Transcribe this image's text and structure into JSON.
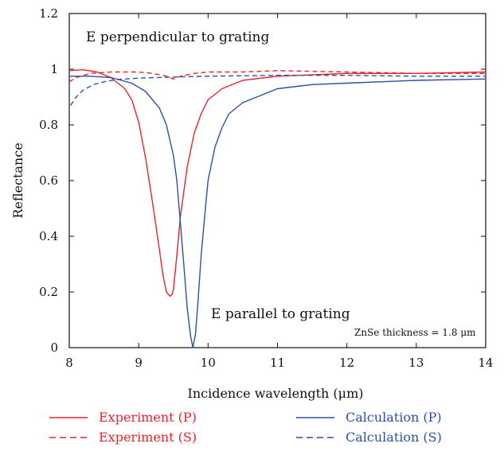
{
  "chart_data": {
    "type": "line",
    "xlabel": "Incidence wavelength (μm)",
    "ylabel": "Reflectance",
    "xlim": [
      8,
      14
    ],
    "ylim": [
      0,
      1.2
    ],
    "xticks": [
      "8",
      "9",
      "10",
      "11",
      "12",
      "13",
      "14"
    ],
    "yticks": [
      "0",
      "0.2",
      "0.4",
      "0.6",
      "0.8",
      "1",
      "1.2"
    ],
    "grid": false,
    "legend_position": "bottom",
    "annotations": {
      "top": "E perpendicular to grating",
      "bottom": "E parallel to grating",
      "thickness": "ZnSe thickness = 1.8 μm"
    },
    "series": [
      {
        "name": "Experiment (P)",
        "color": "#e8232a",
        "dash": "solid",
        "x": [
          8.0,
          8.2,
          8.4,
          8.6,
          8.8,
          8.9,
          9.0,
          9.1,
          9.2,
          9.3,
          9.35,
          9.4,
          9.45,
          9.48,
          9.5,
          9.55,
          9.6,
          9.7,
          9.8,
          9.9,
          10.0,
          10.2,
          10.5,
          11.0,
          12.0,
          13.0,
          14.0
        ],
        "y": [
          0.995,
          0.998,
          0.99,
          0.97,
          0.93,
          0.89,
          0.81,
          0.68,
          0.52,
          0.35,
          0.26,
          0.2,
          0.185,
          0.19,
          0.21,
          0.33,
          0.47,
          0.65,
          0.77,
          0.84,
          0.89,
          0.93,
          0.96,
          0.975,
          0.985,
          0.985,
          0.99
        ]
      },
      {
        "name": "Experiment (S)",
        "color": "#e8232a",
        "dash": "dashed",
        "x": [
          8.0,
          8.1,
          8.3,
          8.6,
          9.0,
          9.2,
          9.4,
          9.5,
          9.6,
          9.8,
          10.0,
          10.5,
          11.0,
          12.0,
          13.0,
          14.0
        ],
        "y": [
          0.955,
          0.97,
          0.985,
          0.99,
          0.99,
          0.985,
          0.975,
          0.965,
          0.975,
          0.985,
          0.99,
          0.99,
          0.995,
          0.99,
          0.985,
          0.985
        ]
      },
      {
        "name": "Calculation (P)",
        "color": "#2d4fa8",
        "dash": "solid",
        "x": [
          8.0,
          8.3,
          8.6,
          8.9,
          9.1,
          9.3,
          9.4,
          9.5,
          9.55,
          9.6,
          9.65,
          9.7,
          9.75,
          9.78,
          9.82,
          9.85,
          9.9,
          9.95,
          10.0,
          10.1,
          10.2,
          10.3,
          10.5,
          10.8,
          11.0,
          11.5,
          12.0,
          13.0,
          14.0
        ],
        "y": [
          0.975,
          0.975,
          0.97,
          0.95,
          0.92,
          0.86,
          0.8,
          0.69,
          0.6,
          0.45,
          0.3,
          0.14,
          0.04,
          0.0,
          0.05,
          0.15,
          0.33,
          0.47,
          0.6,
          0.72,
          0.79,
          0.84,
          0.88,
          0.91,
          0.93,
          0.945,
          0.95,
          0.96,
          0.965
        ]
      },
      {
        "name": "Calculation (S)",
        "color": "#2d4fa8",
        "dash": "dashed",
        "x": [
          8.02,
          8.1,
          8.2,
          8.35,
          8.5,
          8.7,
          9.0,
          9.5,
          10.0,
          11.0,
          12.0,
          13.0,
          14.0
        ],
        "y": [
          0.87,
          0.9,
          0.925,
          0.945,
          0.955,
          0.963,
          0.968,
          0.972,
          0.975,
          0.978,
          0.978,
          0.975,
          0.975
        ]
      }
    ]
  }
}
